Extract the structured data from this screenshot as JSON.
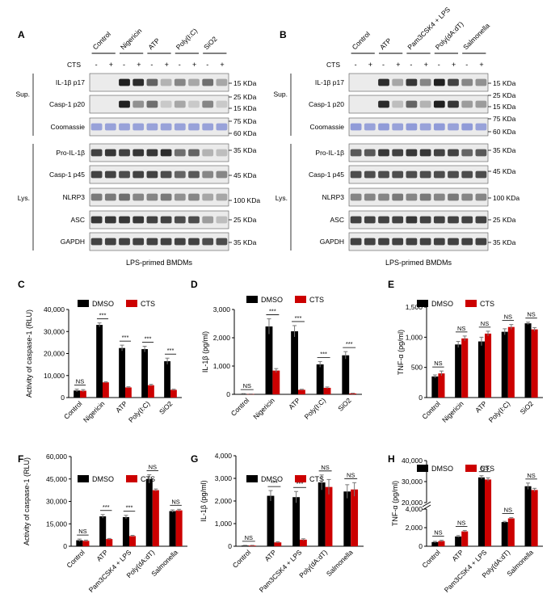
{
  "panel_labels": {
    "A": "A",
    "B": "B",
    "C": "C",
    "D": "D",
    "E": "E",
    "F": "F",
    "G": "G",
    "H": "H"
  },
  "blots": [
    {
      "id": "A",
      "treatments": [
        "Control",
        "Nigericin",
        "ATP",
        "Poly(I:C)",
        "SiO2"
      ],
      "cts_label": "CTS",
      "signs": [
        "-",
        "+"
      ],
      "sup_label": "Sup.",
      "lys_label": "Lys.",
      "sup_rows": [
        "IL-1β p17",
        "Casp-1 p20",
        "Coomassie"
      ],
      "lys_rows": [
        "Pro-IL-1β",
        "Casp-1 p45",
        "NLRP3",
        "ASC",
        "GAPDH"
      ],
      "markers": [
        "15 KDa",
        "25 KDa",
        "15 KDa",
        "75 KDa",
        "60 KDa",
        "35 KDa",
        "45 KDa",
        "100 KDa",
        "25 KDa",
        "35 KDa"
      ],
      "footer": "LPS-primed BMDMs"
    },
    {
      "id": "B",
      "treatments": [
        "Control",
        "ATP",
        "Pam3CSK4 + LPS",
        "Poly(dA:dT)",
        "Salmonella"
      ],
      "cts_label": "CTS",
      "signs": [
        "-",
        "+"
      ],
      "sup_label": "Sup.",
      "lys_label": "Lys.",
      "sup_rows": [
        "IL-1β p17",
        "Casp-1 p20",
        "Coomassie"
      ],
      "lys_rows": [
        "Pro-IL-1β",
        "Casp-1 p45",
        "NLRP3",
        "ASC",
        "GAPDH"
      ],
      "markers": [
        "15 KDa",
        "25 KDa",
        "15 KDa",
        "75 KDa",
        "60 KDa",
        "35 KDa",
        "45 KDa",
        "100 KDa",
        "25 KDa",
        "35 KDa"
      ],
      "footer": "LPS-primed BMDMs"
    }
  ],
  "colors": {
    "dmso": "#000000",
    "cts": "#cc0000"
  },
  "chart_data": [
    {
      "id": "C",
      "type": "bar",
      "ylabel": "Activity of caspase-1 (RLU)",
      "ylim": [
        0,
        40000
      ],
      "yticks": [
        0,
        10000,
        20000,
        30000,
        40000
      ],
      "categories": [
        "Control",
        "Nigericin",
        "ATP",
        "Poly(I:C)",
        "SiO2"
      ],
      "legend": [
        "DMSO",
        "CTS"
      ],
      "series": [
        {
          "name": "DMSO",
          "values": [
            3200,
            33000,
            22500,
            22000,
            16500
          ],
          "errors": [
            600,
            900,
            1300,
            1300,
            1400
          ]
        },
        {
          "name": "CTS",
          "values": [
            3100,
            6900,
            4600,
            5600,
            3500
          ],
          "errors": [
            500,
            300,
            300,
            400,
            300
          ]
        }
      ],
      "annotations": [
        "NS",
        "***",
        "***",
        "***",
        "***"
      ]
    },
    {
      "id": "D",
      "type": "bar",
      "ylabel": "IL-1β (pg/ml)",
      "ylim": [
        0,
        3000
      ],
      "yticks": [
        0,
        1000,
        2000,
        3000
      ],
      "categories": [
        "Control",
        "Nigericin",
        "ATP",
        "Poly(I:C)",
        "SiO2"
      ],
      "legend": [
        "DMSO",
        "CTS"
      ],
      "series": [
        {
          "name": "DMSO",
          "values": [
            15,
            2400,
            2230,
            1060,
            1380
          ],
          "errors": [
            10,
            270,
            200,
            100,
            130
          ]
        },
        {
          "name": "CTS",
          "values": [
            10,
            840,
            160,
            230,
            30
          ],
          "errors": [
            5,
            70,
            20,
            30,
            10
          ]
        }
      ],
      "annotations": [
        "NS",
        "***",
        "***",
        "***",
        "***"
      ]
    },
    {
      "id": "E",
      "type": "bar",
      "ylabel": "TNF-α (pg/ml)",
      "ylim": [
        0,
        1500
      ],
      "yticks": [
        0,
        500,
        1000,
        1500
      ],
      "categories": [
        "Control",
        "Nigericin",
        "ATP",
        "Poly(I:C)",
        "SiO2"
      ],
      "legend": [
        "DMSO",
        "CTS"
      ],
      "series": [
        {
          "name": "DMSO",
          "values": [
            350,
            880,
            930,
            1090,
            1230
          ],
          "errors": [
            25,
            50,
            70,
            50,
            20
          ]
        },
        {
          "name": "CTS",
          "values": [
            400,
            980,
            1060,
            1170,
            1130
          ],
          "errors": [
            40,
            40,
            40,
            40,
            30
          ]
        }
      ],
      "annotations": [
        "NS",
        "NS",
        "NS",
        "NS",
        "NS"
      ]
    },
    {
      "id": "F",
      "type": "bar",
      "ylabel": "Activity of caspase-1 (RLU)",
      "ylim": [
        0,
        60000
      ],
      "yticks": [
        0,
        15000,
        30000,
        45000,
        60000
      ],
      "categories": [
        "Control",
        "ATP",
        "Pam3CSK4 + LPS",
        "Poly(dA:dT)",
        "Salmonella"
      ],
      "legend": [
        "DMSO",
        "CTS"
      ],
      "series": [
        {
          "name": "DMSO",
          "values": [
            4000,
            20000,
            19500,
            45000,
            23500
          ],
          "errors": [
            800,
            1200,
            1200,
            2800,
            800
          ]
        },
        {
          "name": "CTS",
          "values": [
            3600,
            4800,
            6800,
            37500,
            24000
          ],
          "errors": [
            500,
            400,
            500,
            800,
            700
          ]
        }
      ],
      "annotations": [
        "NS",
        "***",
        "***",
        "NS",
        "NS"
      ]
    },
    {
      "id": "G",
      "type": "bar",
      "ylabel": "IL-1β (pg/ml)",
      "ylim": [
        0,
        4000
      ],
      "yticks": [
        0,
        1000,
        2000,
        3000,
        4000
      ],
      "categories": [
        "Control",
        "ATP",
        "Pam3CSK4 + LPS",
        "Poly(dA:dT)",
        "Salmonella"
      ],
      "legend": [
        "DMSO",
        "CTS"
      ],
      "series": [
        {
          "name": "DMSO",
          "values": [
            30,
            2230,
            2170,
            2820,
            2420
          ],
          "errors": [
            10,
            230,
            250,
            330,
            300
          ]
        },
        {
          "name": "CTS",
          "values": [
            30,
            170,
            290,
            2620,
            2510
          ],
          "errors": [
            10,
            30,
            40,
            330,
            300
          ]
        }
      ],
      "annotations": [
        "NS",
        "***",
        "***",
        "NS",
        "NS"
      ]
    },
    {
      "id": "H",
      "type": "bar",
      "ylabel": "TNF-α (pg/ml)",
      "axis_break": {
        "lower": [
          0,
          4000
        ],
        "upper": [
          20000,
          40000
        ]
      },
      "yticks": [
        0,
        2000,
        4000,
        20000,
        30000,
        40000
      ],
      "categories": [
        "Control",
        "ATP",
        "Pam3CSK4 + LPS",
        "Poly(dA:dT)",
        "Salmonella"
      ],
      "legend": [
        "DMSO",
        "CTS"
      ],
      "series": [
        {
          "name": "DMSO",
          "values": [
            450,
            1050,
            32000,
            2600,
            27800
          ],
          "errors": [
            80,
            100,
            800,
            80,
            1500
          ]
        },
        {
          "name": "CTS",
          "values": [
            560,
            1600,
            31000,
            3000,
            26000
          ],
          "errors": [
            80,
            100,
            800,
            80,
            800
          ]
        }
      ],
      "annotations": [
        "NS",
        "NS",
        "NS",
        "NS",
        "NS"
      ]
    }
  ]
}
